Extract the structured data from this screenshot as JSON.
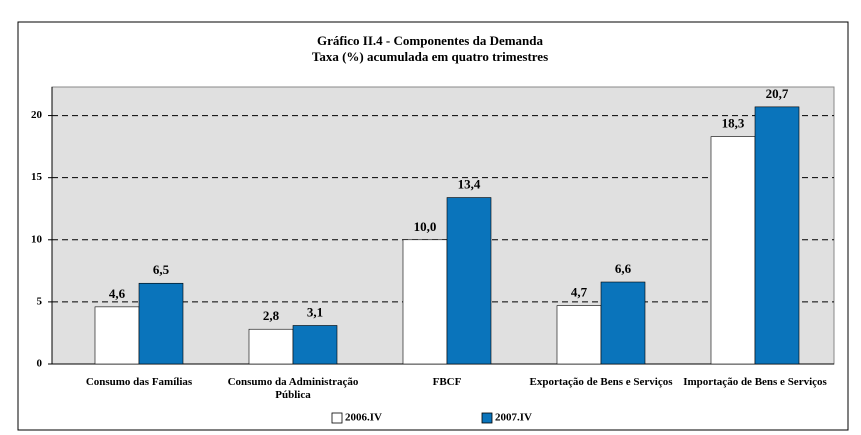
{
  "chart_data": {
    "type": "bar",
    "title": "Gráfico II.4 - Componentes da Demanda",
    "subtitle": "Taxa (%) acumulada em quatro trimestres",
    "categories": [
      "Consumo das Famílias",
      "Consumo da Administração Pública",
      "FBCF",
      "Exportação de Bens e Serviços",
      "Importação de Bens e Serviços"
    ],
    "series": [
      {
        "name": "2006.IV",
        "color": "#ffffff",
        "values": [
          4.6,
          2.8,
          10.0,
          4.7,
          18.3
        ],
        "value_labels": [
          "4,6",
          "2,8",
          "10,0",
          "4,7",
          "18,3"
        ]
      },
      {
        "name": "2007.IV",
        "color": "#0a74bb",
        "values": [
          6.5,
          3.1,
          13.4,
          6.6,
          20.7
        ],
        "value_labels": [
          "6,5",
          "3,1",
          "13,4",
          "6,6",
          "20,7"
        ]
      }
    ],
    "ylim": [
      0,
      22.3
    ],
    "yticks": [
      0,
      5,
      10,
      15,
      20
    ],
    "grid": true,
    "legend": "bottom"
  }
}
